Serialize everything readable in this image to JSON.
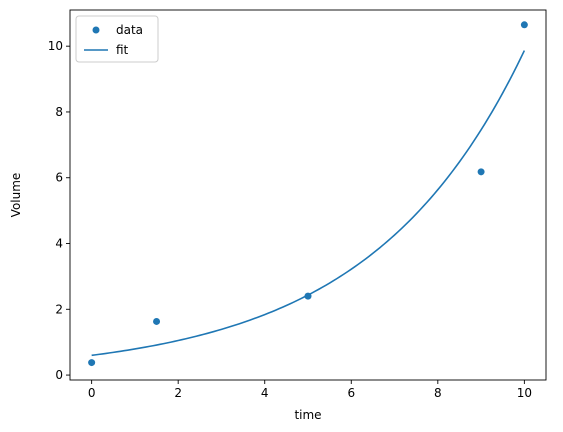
{
  "chart_data": {
    "type": "scatter",
    "title": "",
    "xlabel": "time",
    "ylabel": "Volume",
    "xlim": [
      -0.5,
      10.5
    ],
    "ylim": [
      -0.15,
      11.1
    ],
    "x_ticks": [
      0,
      2,
      4,
      6,
      8,
      10
    ],
    "y_ticks": [
      0,
      2,
      4,
      6,
      8,
      10
    ],
    "grid": false,
    "legend_position": "top-left",
    "series": [
      {
        "name": "data",
        "kind": "scatter",
        "color": "#1f77b4",
        "x": [
          0,
          1.5,
          5,
          9,
          10
        ],
        "y": [
          0.38,
          1.63,
          2.4,
          6.18,
          10.65
        ]
      },
      {
        "name": "fit",
        "kind": "line",
        "color": "#1f77b4",
        "model": {
          "form": "a*exp(b*x)",
          "a": 0.6,
          "b": 0.28
        }
      }
    ]
  }
}
